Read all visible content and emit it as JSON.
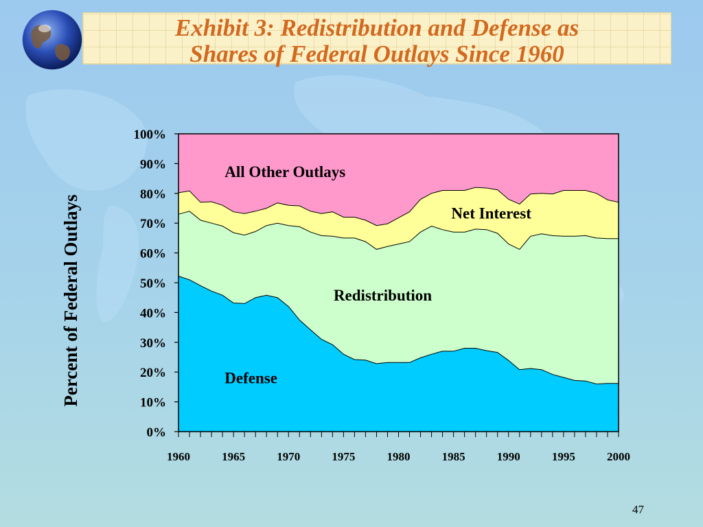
{
  "slide": {
    "title_lines": [
      "Exhibit 3: Redistribution and Defense as",
      "Shares of Federal Outlays Since 1960"
    ],
    "page_number": "47"
  },
  "icons": {
    "globe": "globe-icon"
  },
  "colors": {
    "defense": "#00ccff",
    "redistribution": "#ccffcc",
    "net_interest": "#ffff99",
    "other": "#ff99cc",
    "title": "#d2691e"
  },
  "chart_data": {
    "type": "area",
    "stacked": true,
    "ylabel": "Percent of Federal Outlays",
    "xlabel": "",
    "ylim": [
      0,
      100
    ],
    "xlim": [
      1960,
      2000
    ],
    "x_tick_labels": [
      "1960",
      "1965",
      "1970",
      "1975",
      "1980",
      "1985",
      "1990",
      "1995",
      "2000"
    ],
    "y_tick_labels": [
      "0%",
      "10%",
      "20%",
      "30%",
      "40%",
      "50%",
      "60%",
      "70%",
      "80%",
      "90%",
      "100%"
    ],
    "x": [
      1960,
      1961,
      1962,
      1963,
      1964,
      1965,
      1966,
      1967,
      1968,
      1969,
      1970,
      1971,
      1972,
      1973,
      1974,
      1975,
      1976,
      1977,
      1978,
      1979,
      1980,
      1981,
      1982,
      1983,
      1984,
      1985,
      1986,
      1987,
      1988,
      1989,
      1990,
      1991,
      1992,
      1993,
      1994,
      1995,
      1996,
      1997,
      1998,
      1999,
      2000
    ],
    "series": [
      {
        "name": "Defense",
        "cumulative": [
          52.2,
          51,
          49,
          47.2,
          45.8,
          43.2,
          43,
          45,
          45.8,
          45,
          42,
          37.5,
          34.2,
          31,
          29.2,
          26,
          24.2,
          24,
          22.8,
          23.2,
          23.2,
          23.2,
          24.8,
          26,
          27,
          27,
          28,
          28,
          27.2,
          26.6,
          23.9,
          20.8,
          21.2,
          20.8,
          19.2,
          18.2,
          17.2,
          17,
          16,
          16.2,
          16.2
        ]
      },
      {
        "name": "Redistribution",
        "cumulative": [
          73,
          74,
          71,
          70,
          69,
          66.8,
          66,
          67.2,
          69.2,
          70,
          69.2,
          68.8,
          67,
          65.8,
          65.6,
          65,
          65,
          63.8,
          61.2,
          62.2,
          63,
          63.8,
          67,
          69,
          67.8,
          67,
          67,
          68,
          67.8,
          66.6,
          63,
          61.2,
          65.6,
          66.4,
          65.8,
          65.6,
          65.6,
          65.8,
          65,
          64.8,
          64.8
        ]
      },
      {
        "name": "Net Interest",
        "cumulative": [
          80.2,
          80.8,
          77,
          77.2,
          76,
          73.8,
          73.2,
          74,
          75,
          76.8,
          76,
          75.8,
          74,
          73.2,
          73.8,
          72,
          72,
          71,
          69.2,
          69.8,
          71.8,
          73.8,
          78,
          80,
          81,
          81,
          81,
          82,
          81.8,
          81.2,
          78,
          76.4,
          79.8,
          80,
          79.8,
          81,
          81,
          81,
          80,
          77.8,
          77
        ]
      },
      {
        "name": "All Other Outlays",
        "cumulative": [
          100,
          100,
          100,
          100,
          100,
          100,
          100,
          100,
          100,
          100,
          100,
          100,
          100,
          100,
          100,
          100,
          100,
          100,
          100,
          100,
          100,
          100,
          100,
          100,
          100,
          100,
          100,
          100,
          100,
          100,
          100,
          100,
          100,
          100,
          100,
          100,
          100,
          100,
          100,
          100,
          100
        ]
      }
    ],
    "annotations": [
      {
        "text": "All Other Outlays",
        "x": 1964.2,
        "y": 85.5
      },
      {
        "text": "Net Interest",
        "x": 1984.8,
        "y": 71.6
      },
      {
        "text": "Redistribution",
        "x": 1974.1,
        "y": 44.0
      },
      {
        "text": "Defense",
        "x": 1964.2,
        "y": 16.2
      }
    ]
  }
}
